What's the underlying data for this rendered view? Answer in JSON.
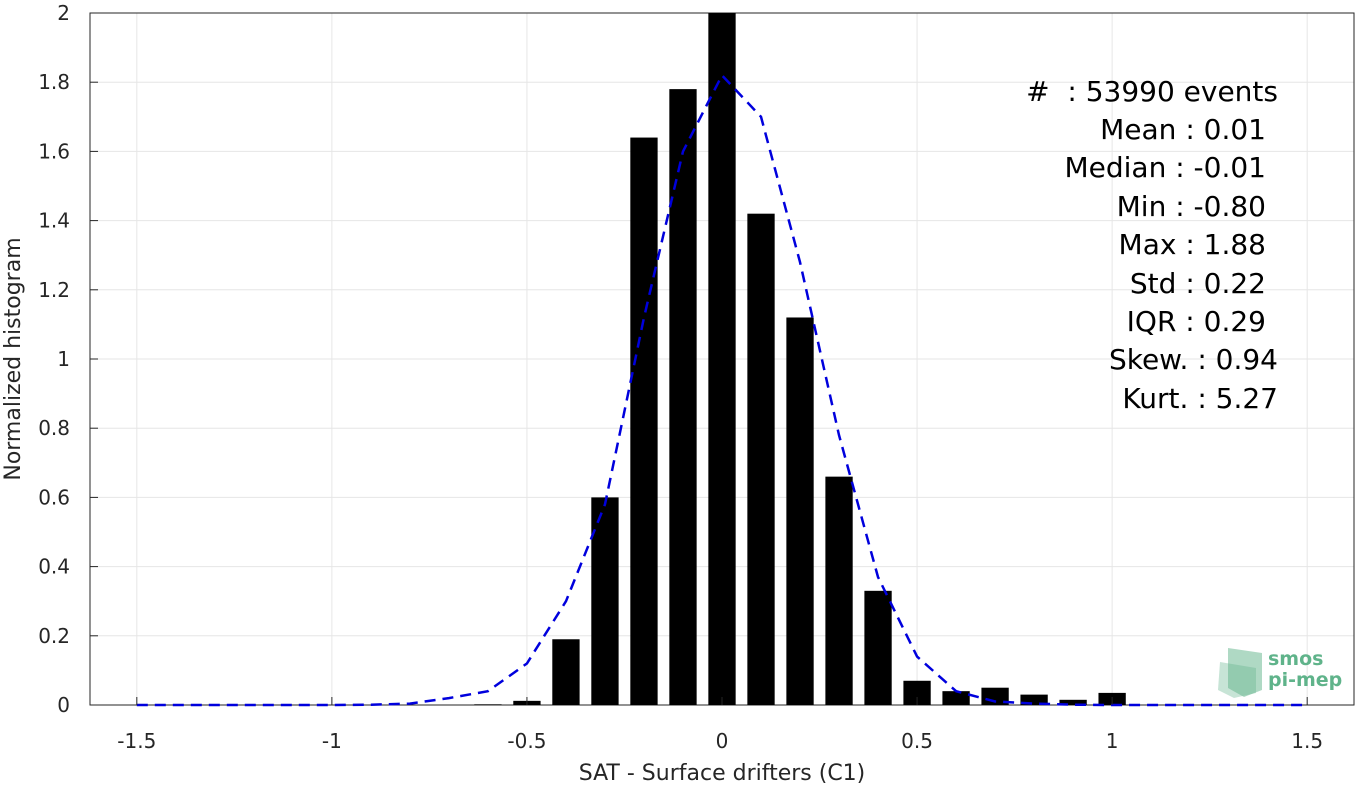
{
  "chart_data": {
    "type": "bar",
    "xlabel": "SAT - Surface drifters (C1)",
    "ylabel": "Normalized histogram",
    "xlim": [
      -1.62,
      1.62
    ],
    "ylim": [
      0,
      2
    ],
    "grid": true,
    "x_ticks": [
      -1.5,
      -1,
      -0.5,
      0,
      0.5,
      1,
      1.5
    ],
    "x_tick_labels": [
      "-1.5",
      "-1",
      "-0.5",
      "0",
      "0.5",
      "1",
      "1.5"
    ],
    "y_ticks": [
      0,
      0.2,
      0.4,
      0.6,
      0.8,
      1,
      1.2,
      1.4,
      1.6,
      1.8,
      2
    ],
    "y_tick_labels": [
      "0",
      "0.2",
      "0.4",
      "0.6",
      "0.8",
      "1",
      "1.2",
      "1.4",
      "1.6",
      "1.8",
      "2"
    ],
    "bar_width": 0.07,
    "bars": {
      "x": [
        -0.6,
        -0.5,
        -0.4,
        -0.3,
        -0.2,
        -0.1,
        0.0,
        0.1,
        0.2,
        0.3,
        0.4,
        0.5,
        0.6,
        0.7,
        0.8,
        0.9,
        1.0
      ],
      "values": [
        0.002,
        0.012,
        0.19,
        0.6,
        1.64,
        1.78,
        2.0,
        1.42,
        1.12,
        0.66,
        0.33,
        0.07,
        0.04,
        0.05,
        0.03,
        0.015,
        0.035
      ],
      "color": "#000000"
    },
    "fit_line": {
      "style": "dashed",
      "color": "#0000dd",
      "x": [
        -1.5,
        -1.4,
        -1.3,
        -1.2,
        -1.1,
        -1.0,
        -0.9,
        -0.8,
        -0.7,
        -0.6,
        -0.5,
        -0.4,
        -0.3,
        -0.2,
        -0.1,
        0.0,
        0.1,
        0.2,
        0.3,
        0.4,
        0.5,
        0.6,
        0.7,
        0.8,
        0.9,
        1.0,
        1.1,
        1.2,
        1.3,
        1.4,
        1.5
      ],
      "y": [
        0,
        0,
        0,
        0,
        0,
        0,
        0.001,
        0.004,
        0.02,
        0.04,
        0.12,
        0.3,
        0.58,
        1.12,
        1.6,
        1.82,
        1.7,
        1.28,
        0.78,
        0.37,
        0.14,
        0.04,
        0.01,
        0.004,
        0.001,
        0,
        0,
        0,
        0,
        0,
        0
      ]
    },
    "annotations": [
      "#  : 53990 events",
      "Mean : 0.01",
      "Median : -0.01",
      "Min : -0.80",
      "Max : 1.88",
      "Std : 0.22",
      "IQR : 0.29",
      "Skew. : 0.94",
      "Kurt. : 5.27"
    ]
  },
  "logo": {
    "line1": "smos",
    "line2": "pi-mep",
    "color": "#5fb38a"
  }
}
